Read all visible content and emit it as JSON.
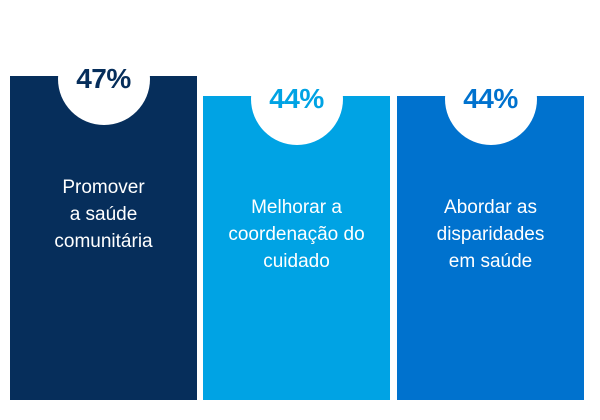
{
  "chart_data": {
    "type": "bar",
    "categories": [
      "Promover\na saúde\ncomunitária",
      "Melhorar a\ncoordenação do\ncuidado",
      "Abordar as\ndisparidades\nem saúde"
    ],
    "values": [
      47,
      44,
      44
    ],
    "value_labels": [
      "47%",
      "44%",
      "44%"
    ],
    "ylim": [
      0,
      50
    ],
    "colors": [
      "#062e5b",
      "#00a3e4",
      "#0072ce"
    ]
  }
}
